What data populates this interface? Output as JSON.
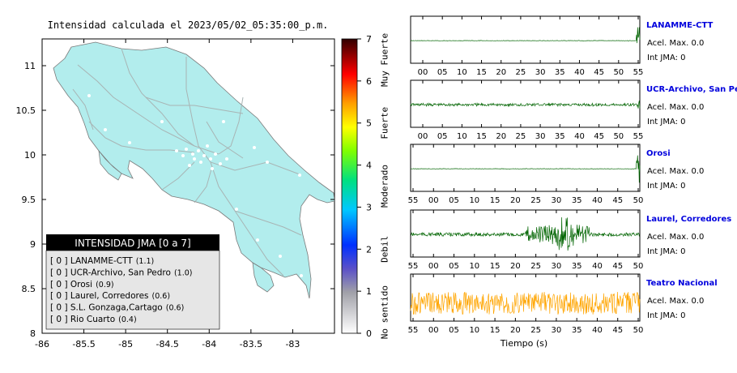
{
  "chart_data": [
    {
      "type": "heatmap",
      "title": "Intensidad calculada el 2023/05/02_05:35:00_p.m.",
      "xlim": [
        -86,
        -82.5
      ],
      "ylim": [
        8,
        11.3
      ],
      "x_ticks": [
        "-86",
        "-85.5",
        "-85",
        "-84.5",
        "-84",
        "-83.5",
        "-83"
      ],
      "y_ticks": [
        "8",
        "8.5",
        "9",
        "9.5",
        "10",
        "10.5",
        "11"
      ],
      "colorbar": {
        "ticks": [
          "0",
          "1",
          "2",
          "3",
          "4",
          "5",
          "6",
          "7"
        ],
        "levels": [
          "No sentido",
          "Debil",
          "Moderado",
          "Fuerte",
          "Muy Fuerte"
        ],
        "range": [
          0,
          7
        ]
      },
      "legend": {
        "title": "INTENSIDAD JMA [0 a 7]",
        "placement": "bottom-left",
        "entries": [
          {
            "text": "[ 0 ]  LANAMME-CTT",
            "value": "(1.1)"
          },
          {
            "text": "[ 0 ]  UCR-Archivo, San Pedro",
            "value": "(1.0)"
          },
          {
            "text": "[ 0 ]  Orosi",
            "value": "(0.9)"
          },
          {
            "text": "[ 0 ]  Laurel, Corredores",
            "value": "(0.6)"
          },
          {
            "text": "[ 0 ]  S.L. Gonzaga,Cartago",
            "value": "(0.6)"
          },
          {
            "text": "[ 0 ]  Rio Cuarto",
            "value": "(0.4)"
          }
        ]
      }
    },
    {
      "type": "line",
      "xlabel": "Tiempo (s)",
      "series": [
        {
          "name": "LANAMME-CTT",
          "acel": "Acel. Max. 0.0",
          "jma": "Int JMA: 0",
          "ticks": [
            "00",
            "05",
            "10",
            "15",
            "20",
            "25",
            "30",
            "35",
            "40",
            "45",
            "50",
            "55"
          ],
          "color": "#006400",
          "pattern": "flat-spike-end"
        },
        {
          "name": "UCR-Archivo, San Pedro",
          "acel": "Acel. Max. 0.0",
          "jma": "Int JMA: 0",
          "ticks": [
            "00",
            "05",
            "10",
            "15",
            "20",
            "25",
            "30",
            "35",
            "40",
            "45",
            "50",
            "55"
          ],
          "color": "#006400",
          "pattern": "low-noise"
        },
        {
          "name": "Orosi",
          "acel": "Acel. Max. 0.0",
          "jma": "Int JMA: 0",
          "ticks": [
            "55",
            "00",
            "05",
            "10",
            "15",
            "20",
            "25",
            "30",
            "35",
            "40",
            "45",
            "50"
          ],
          "color": "#006400",
          "pattern": "flat-spike-end"
        },
        {
          "name": "Laurel, Corredores",
          "acel": "Acel. Max. 0.0",
          "jma": "Int JMA: 0",
          "ticks": [
            "55",
            "00",
            "05",
            "10",
            "15",
            "20",
            "25",
            "30",
            "35",
            "40",
            "45",
            "50"
          ],
          "color": "#006400",
          "pattern": "burst"
        },
        {
          "name": "Teatro Nacional",
          "acel": "Acel. Max. 0.0",
          "jma": "Int JMA: 0",
          "ticks": [
            "55",
            "00",
            "05",
            "10",
            "15",
            "20",
            "25",
            "30",
            "35",
            "40",
            "45",
            "50"
          ],
          "color": "#FFA500",
          "pattern": "noisy"
        }
      ]
    }
  ]
}
